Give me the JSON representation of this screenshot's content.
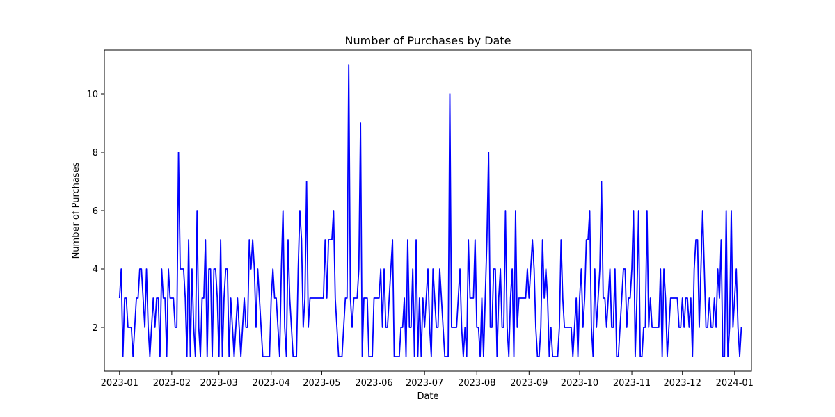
{
  "chart_data": {
    "type": "line",
    "title": "Number of Purchases by Date",
    "xlabel": "Date",
    "ylabel": "Number of Purchases",
    "grid": false,
    "legend": "none",
    "x_start": "2023-01-01",
    "xlim": [
      "2022-12-23",
      "2024-01-11"
    ],
    "ylim": [
      0.5,
      11.5
    ],
    "x_ticks": [
      {
        "date": "2023-01-01",
        "label": "2023-01"
      },
      {
        "date": "2023-02-01",
        "label": "2023-02"
      },
      {
        "date": "2023-03-01",
        "label": "2023-03"
      },
      {
        "date": "2023-04-01",
        "label": "2023-04"
      },
      {
        "date": "2023-05-01",
        "label": "2023-05"
      },
      {
        "date": "2023-06-01",
        "label": "2023-06"
      },
      {
        "date": "2023-07-01",
        "label": "2023-07"
      },
      {
        "date": "2023-08-01",
        "label": "2023-08"
      },
      {
        "date": "2023-09-01",
        "label": "2023-09"
      },
      {
        "date": "2023-10-01",
        "label": "2023-10"
      },
      {
        "date": "2023-11-01",
        "label": "2023-11"
      },
      {
        "date": "2023-12-01",
        "label": "2023-12"
      },
      {
        "date": "2024-01-01",
        "label": "2024-01"
      }
    ],
    "y_ticks": [
      {
        "value": 2,
        "label": "2"
      },
      {
        "value": 4,
        "label": "4"
      },
      {
        "value": 6,
        "label": "6"
      },
      {
        "value": 8,
        "label": "8"
      },
      {
        "value": 10,
        "label": "10"
      }
    ],
    "series": [
      {
        "color": "#0000ff",
        "values": [
          3,
          4,
          1,
          3,
          3,
          2,
          2,
          2,
          1,
          2,
          3,
          3,
          4,
          4,
          3,
          2,
          4,
          2,
          1,
          2,
          3,
          2,
          3,
          3,
          1,
          4,
          3,
          3,
          1,
          4,
          3,
          3,
          3,
          2,
          2,
          8,
          4,
          4,
          4,
          3,
          1,
          5,
          1,
          4,
          2,
          1,
          6,
          2,
          1,
          3,
          3,
          5,
          1,
          4,
          4,
          1,
          4,
          4,
          3,
          1,
          5,
          1,
          3,
          4,
          4,
          1,
          3,
          2,
          1,
          2,
          3,
          2,
          1,
          2,
          3,
          2,
          2,
          5,
          4,
          5,
          4,
          2,
          4,
          3,
          2,
          1,
          1,
          1,
          1,
          1,
          3,
          4,
          3,
          3,
          2,
          1,
          4,
          6,
          2,
          1,
          5,
          3,
          2,
          1,
          1,
          1,
          4,
          6,
          5,
          2,
          3,
          7,
          2,
          3,
          3,
          3,
          3,
          3,
          3,
          3,
          3,
          3,
          5,
          3,
          5,
          5,
          5,
          6,
          3,
          2,
          1,
          1,
          1,
          2,
          3,
          3,
          11,
          3,
          2,
          3,
          3,
          3,
          4,
          9,
          1,
          3,
          3,
          3,
          1,
          1,
          1,
          3,
          3,
          3,
          3,
          4,
          2,
          4,
          2,
          2,
          3,
          4,
          5,
          1,
          1,
          1,
          1,
          2,
          2,
          3,
          1,
          5,
          2,
          2,
          4,
          1,
          5,
          1,
          3,
          1,
          3,
          2,
          3,
          4,
          2,
          1,
          4,
          3,
          2,
          2,
          4,
          3,
          2,
          1,
          1,
          1,
          10,
          2,
          2,
          2,
          2,
          3,
          4,
          2,
          1,
          2,
          1,
          5,
          3,
          3,
          3,
          5,
          2,
          2,
          1,
          3,
          1,
          3,
          5,
          8,
          2,
          2,
          4,
          4,
          1,
          3,
          4,
          2,
          2,
          6,
          2,
          1,
          3,
          4,
          1,
          6,
          2,
          3,
          3,
          3,
          3,
          3,
          4,
          3,
          4,
          5,
          4,
          2,
          1,
          1,
          2,
          5,
          3,
          4,
          3,
          1,
          2,
          1,
          1,
          1,
          1,
          2,
          5,
          3,
          2,
          2,
          2,
          2,
          2,
          1,
          2,
          3,
          1,
          3,
          4,
          2,
          3,
          5,
          5,
          6,
          2,
          1,
          4,
          2,
          3,
          4,
          7,
          3,
          3,
          2,
          3,
          4,
          2,
          2,
          4,
          1,
          1,
          2,
          3,
          4,
          4,
          2,
          3,
          3,
          4,
          6,
          1,
          3,
          6,
          1,
          1,
          2,
          2,
          6,
          2,
          3,
          2,
          2,
          2,
          2,
          2,
          4,
          1,
          4,
          3,
          1,
          2,
          3,
          3,
          3,
          3,
          3,
          2,
          2,
          3,
          2,
          3,
          3,
          2,
          3,
          1,
          4,
          5,
          5,
          2,
          4,
          6,
          4,
          2,
          2,
          3,
          2,
          2,
          3,
          2,
          4,
          3,
          5,
          1,
          1,
          6,
          1,
          2,
          6,
          2,
          3,
          4,
          2,
          1,
          2
        ]
      }
    ]
  }
}
